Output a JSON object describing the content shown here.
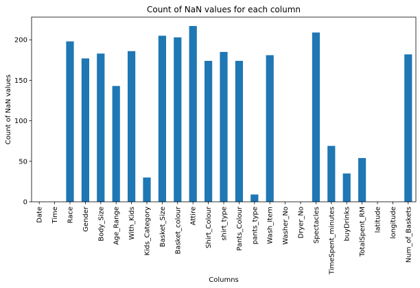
{
  "chart_data": {
    "type": "bar",
    "title": "Count of NaN values for each column",
    "xlabel": "Columns",
    "ylabel": "Count of NaN values",
    "ylim": [
      0,
      228
    ],
    "yticks": [
      0,
      50,
      100,
      150,
      200
    ],
    "grid": false,
    "bar_color": "#1f77b4",
    "categories": [
      "Date",
      "Time",
      "Race",
      "Gender",
      "Body_Size",
      "Age_Range",
      "With_Kids",
      "Kids_Category",
      "Basket_Size",
      "Basket_colour",
      "Attire",
      "Shirt_Colour",
      "shirt_type",
      "Pants_Colour",
      "pants_type",
      "Wash_Item",
      "Washer_No",
      "Dryer_No",
      "Spectacles",
      "TimeSpent_minutes",
      "buyDrinks",
      "TotalSpent_RM",
      "latitude",
      "longitude",
      "Num_of_Baskets"
    ],
    "values": [
      0,
      0,
      198,
      177,
      183,
      143,
      186,
      30,
      205,
      203,
      217,
      174,
      185,
      174,
      9,
      181,
      0,
      0,
      209,
      69,
      35,
      54,
      0,
      0,
      182
    ]
  }
}
